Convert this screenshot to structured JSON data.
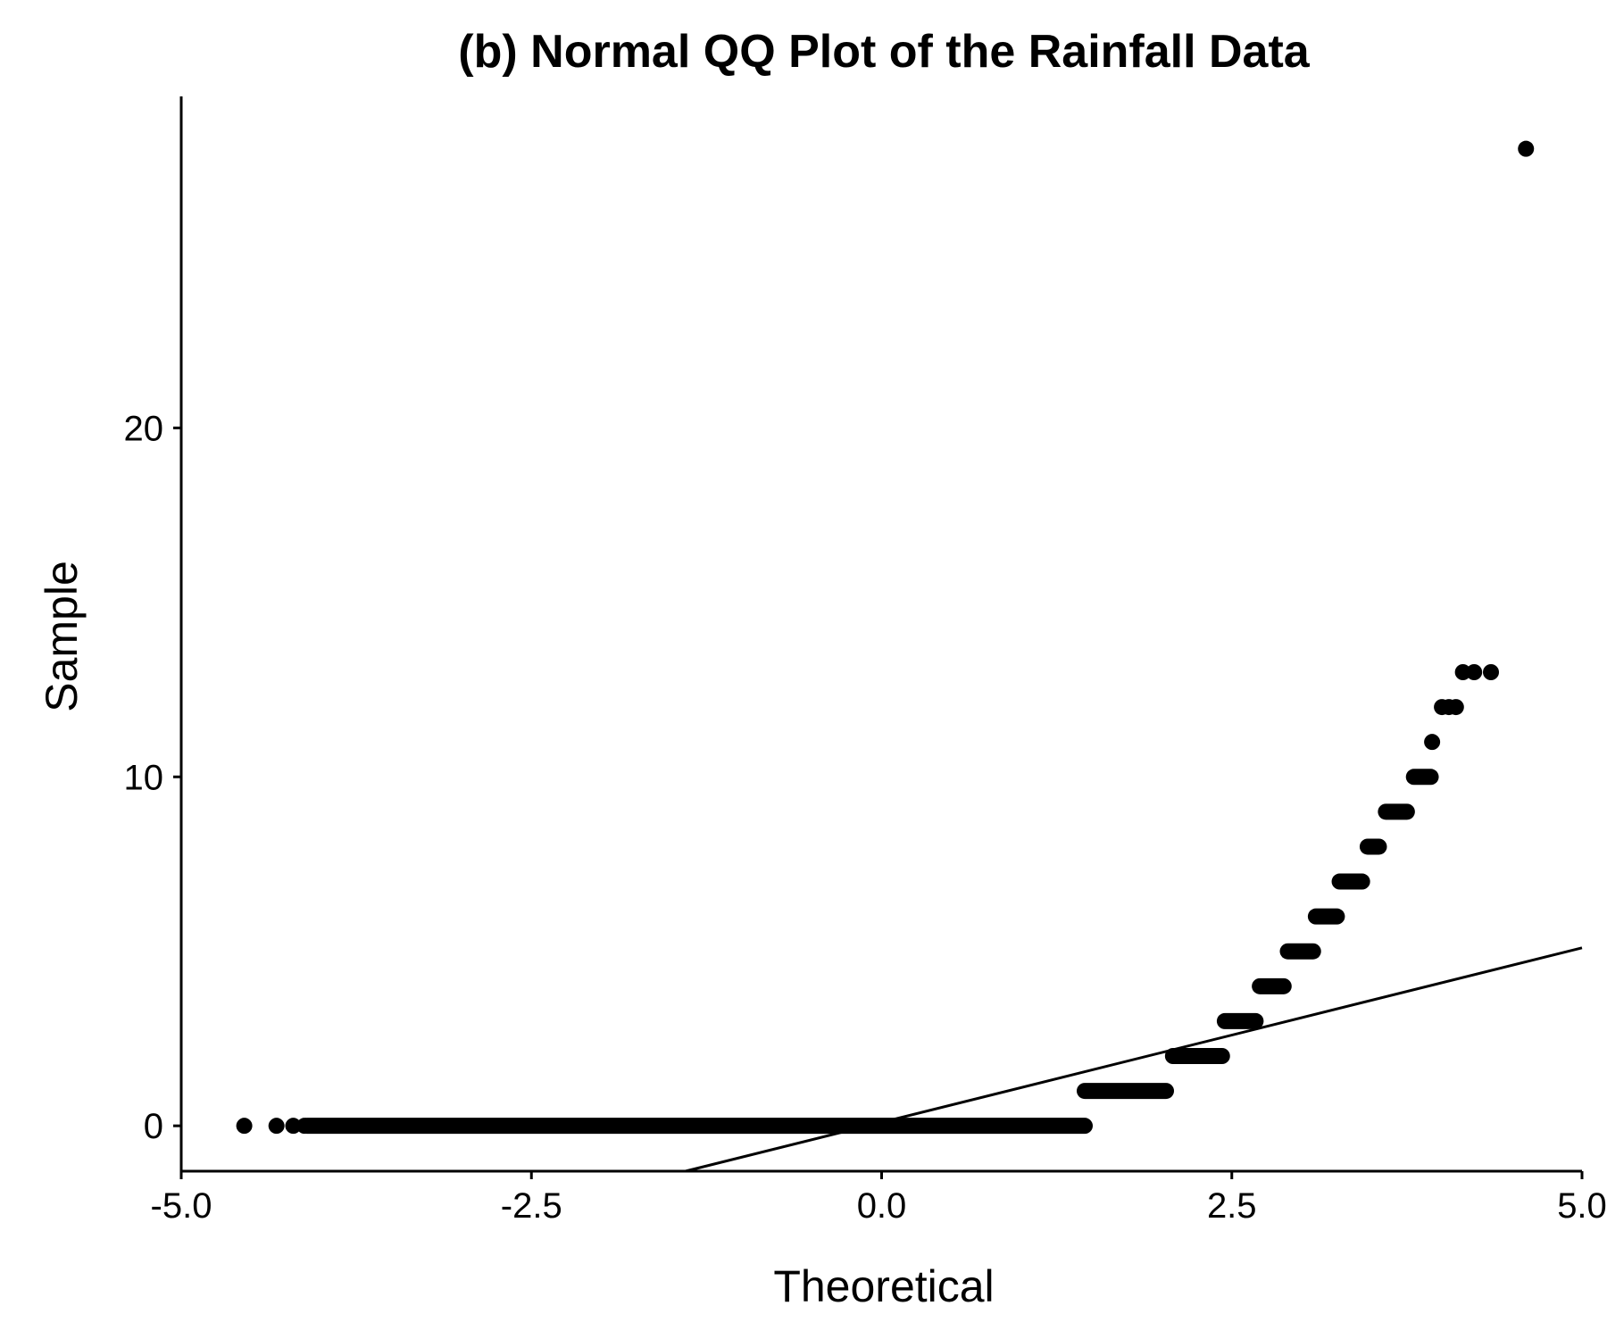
{
  "chart_data": {
    "type": "scatter",
    "title": "(b) Normal QQ Plot of the Rainfall Data",
    "xlabel": "Theoretical",
    "ylabel": "Sample",
    "xlim": [
      -5.0,
      5.0
    ],
    "ylim": [
      -1.3,
      29.5
    ],
    "x_ticks": [
      -5.0,
      -2.5,
      0.0,
      2.5,
      5.0
    ],
    "x_tick_labels": [
      "-5.0",
      "-2.5",
      "0.0",
      "2.5",
      "5.0"
    ],
    "y_ticks": [
      0,
      10,
      20
    ],
    "y_tick_labels": [
      "0",
      "10",
      "20"
    ],
    "grid": false,
    "legend": "none",
    "point_color": "#000000",
    "line_color": "#000000",
    "reference_line": {
      "x": [
        -1.4,
        5.0
      ],
      "y": [
        -1.3,
        5.1
      ]
    },
    "runs": [
      {
        "y": 0,
        "x_start": -4.1,
        "x_end": 1.45
      },
      {
        "y": 1,
        "x_start": 1.45,
        "x_end": 2.03
      },
      {
        "y": 2,
        "x_start": 2.08,
        "x_end": 2.43
      },
      {
        "y": 3,
        "x_start": 2.45,
        "x_end": 2.67
      },
      {
        "y": 4,
        "x_start": 2.7,
        "x_end": 2.87
      },
      {
        "y": 5,
        "x_start": 2.9,
        "x_end": 3.08
      },
      {
        "y": 6,
        "x_start": 3.1,
        "x_end": 3.25
      },
      {
        "y": 7,
        "x_start": 3.27,
        "x_end": 3.43
      },
      {
        "y": 8,
        "x_start": 3.47,
        "x_end": 3.55
      },
      {
        "y": 9,
        "x_start": 3.6,
        "x_end": 3.75
      },
      {
        "y": 10,
        "x_start": 3.8,
        "x_end": 3.92
      }
    ],
    "points": [
      {
        "x": -4.55,
        "y": 0
      },
      {
        "x": -4.32,
        "y": 0
      },
      {
        "x": -4.2,
        "y": 0
      },
      {
        "x": -4.12,
        "y": 0
      },
      {
        "x": 3.93,
        "y": 11
      },
      {
        "x": 4.0,
        "y": 12
      },
      {
        "x": 4.05,
        "y": 12
      },
      {
        "x": 4.1,
        "y": 12
      },
      {
        "x": 4.15,
        "y": 13
      },
      {
        "x": 4.23,
        "y": 13
      },
      {
        "x": 4.35,
        "y": 13
      },
      {
        "x": 4.6,
        "y": 28
      }
    ]
  }
}
